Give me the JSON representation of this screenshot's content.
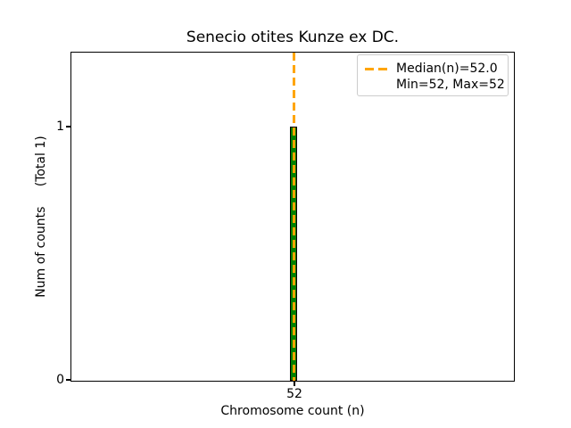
{
  "chart_data": {
    "type": "bar",
    "title": "Senecio otites Kunze ex DC.",
    "xlabel": "Chromosome count (n)",
    "ylabel": "Num of counts     (Total 1)",
    "categories": [
      52
    ],
    "values": [
      1
    ],
    "total_counts": 1,
    "median_n": 52.0,
    "min_n": 52,
    "max_n": 52,
    "xticks": [
      "52"
    ],
    "yticks": [
      "0",
      "1"
    ],
    "ylim": [
      0,
      1.29
    ],
    "grid": false,
    "legend": {
      "position": "upper right",
      "entries": [
        {
          "label": "Median(n)=52.0",
          "marker": "orange-dashed-line"
        },
        {
          "label": "Min=52, Max=52",
          "marker": "none"
        }
      ]
    },
    "colors": {
      "bar_fill": "#008000",
      "bar_edge": "#000000",
      "median_line": "#FFA500",
      "legend_border": "#cccccc",
      "axes_edge": "#000000",
      "text": "#000000",
      "background": "#ffffff"
    }
  }
}
